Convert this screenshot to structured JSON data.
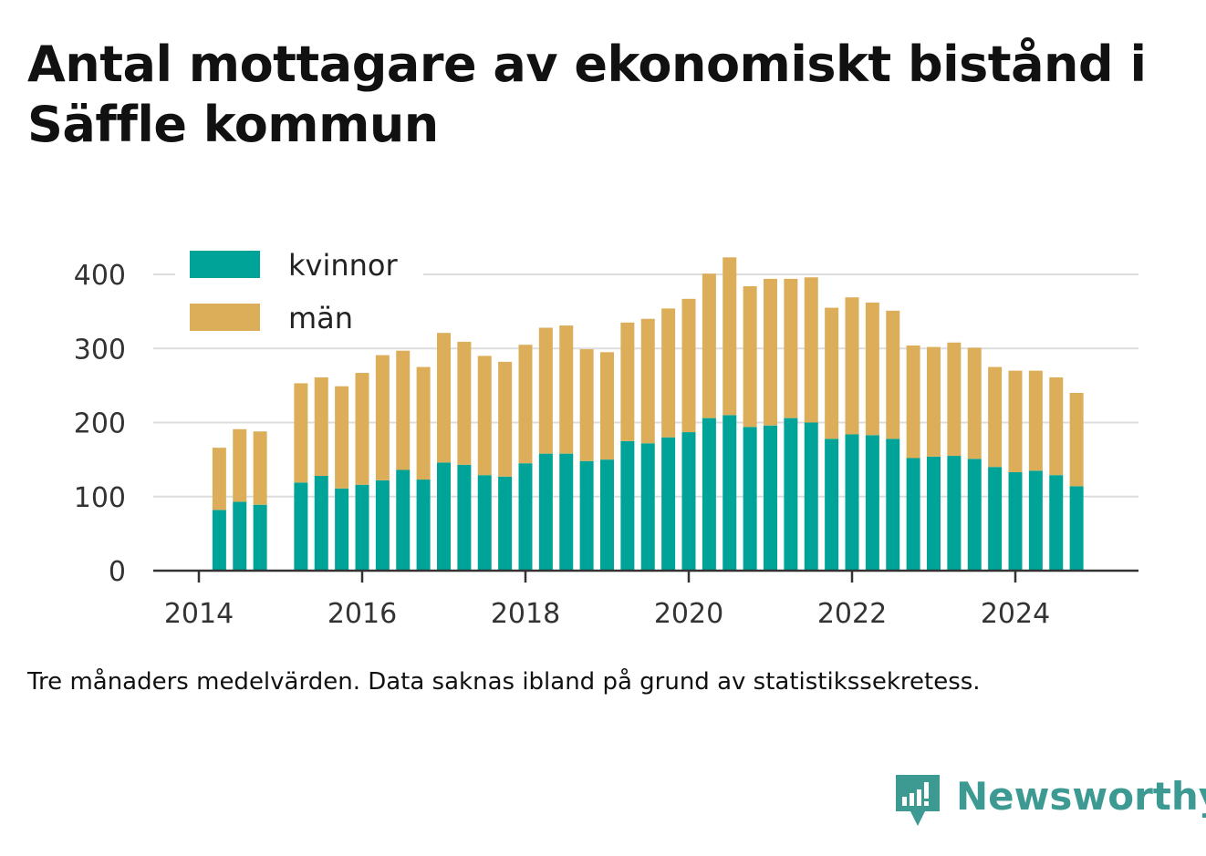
{
  "title": "Antal mottagare av ekonomiskt bistånd i Säffle kommun",
  "caption": "Tre månaders medelvärden. Data saknas ibland på grund av statistikssekretess.",
  "brand": {
    "name": "Newsworthy",
    "color": "#3c9a93"
  },
  "chart_data": {
    "type": "bar",
    "stacked": true,
    "x_tick_labels": [
      "2014",
      "2016",
      "2018",
      "2020",
      "2022",
      "2024"
    ],
    "y_tick_labels": [
      "0",
      "100",
      "200",
      "300",
      "400"
    ],
    "ylim": [
      0,
      420
    ],
    "grid": true,
    "legend_position": "top-left",
    "periods": [
      "2014-Q2",
      "2014-Q3",
      "2014-Q4",
      "2015-Q2",
      "2015-Q3",
      "2015-Q4",
      "2016-Q1",
      "2016-Q2",
      "2016-Q3",
      "2016-Q4",
      "2017-Q1",
      "2017-Q2",
      "2017-Q3",
      "2017-Q4",
      "2018-Q1",
      "2018-Q2",
      "2018-Q3",
      "2018-Q4",
      "2019-Q1",
      "2019-Q2",
      "2019-Q3",
      "2019-Q4",
      "2020-Q1",
      "2020-Q2",
      "2020-Q3",
      "2020-Q4",
      "2021-Q1",
      "2021-Q2",
      "2021-Q3",
      "2021-Q4",
      "2022-Q1",
      "2022-Q2",
      "2022-Q3",
      "2022-Q4",
      "2023-Q1",
      "2023-Q2",
      "2023-Q3",
      "2023-Q4",
      "2024-Q1",
      "2024-Q2",
      "2024-Q3",
      "2024-Q4"
    ],
    "series": [
      {
        "name": "kvinnor",
        "color": "#00a398",
        "values": [
          82,
          93,
          89,
          119,
          128,
          111,
          116,
          122,
          136,
          123,
          146,
          143,
          129,
          127,
          145,
          158,
          158,
          148,
          150,
          175,
          172,
          180,
          187,
          206,
          210,
          194,
          196,
          206,
          200,
          178,
          184,
          183,
          178,
          152,
          154,
          155,
          151,
          140,
          133,
          135,
          129,
          114
        ]
      },
      {
        "name": "män",
        "color": "#dcae5a",
        "values": [
          84,
          98,
          99,
          134,
          133,
          138,
          151,
          169,
          161,
          152,
          175,
          166,
          161,
          155,
          160,
          170,
          173,
          151,
          145,
          160,
          168,
          174,
          180,
          195,
          213,
          190,
          198,
          188,
          196,
          177,
          185,
          179,
          173,
          152,
          148,
          153,
          150,
          135,
          137,
          135,
          132,
          126
        ]
      }
    ]
  }
}
